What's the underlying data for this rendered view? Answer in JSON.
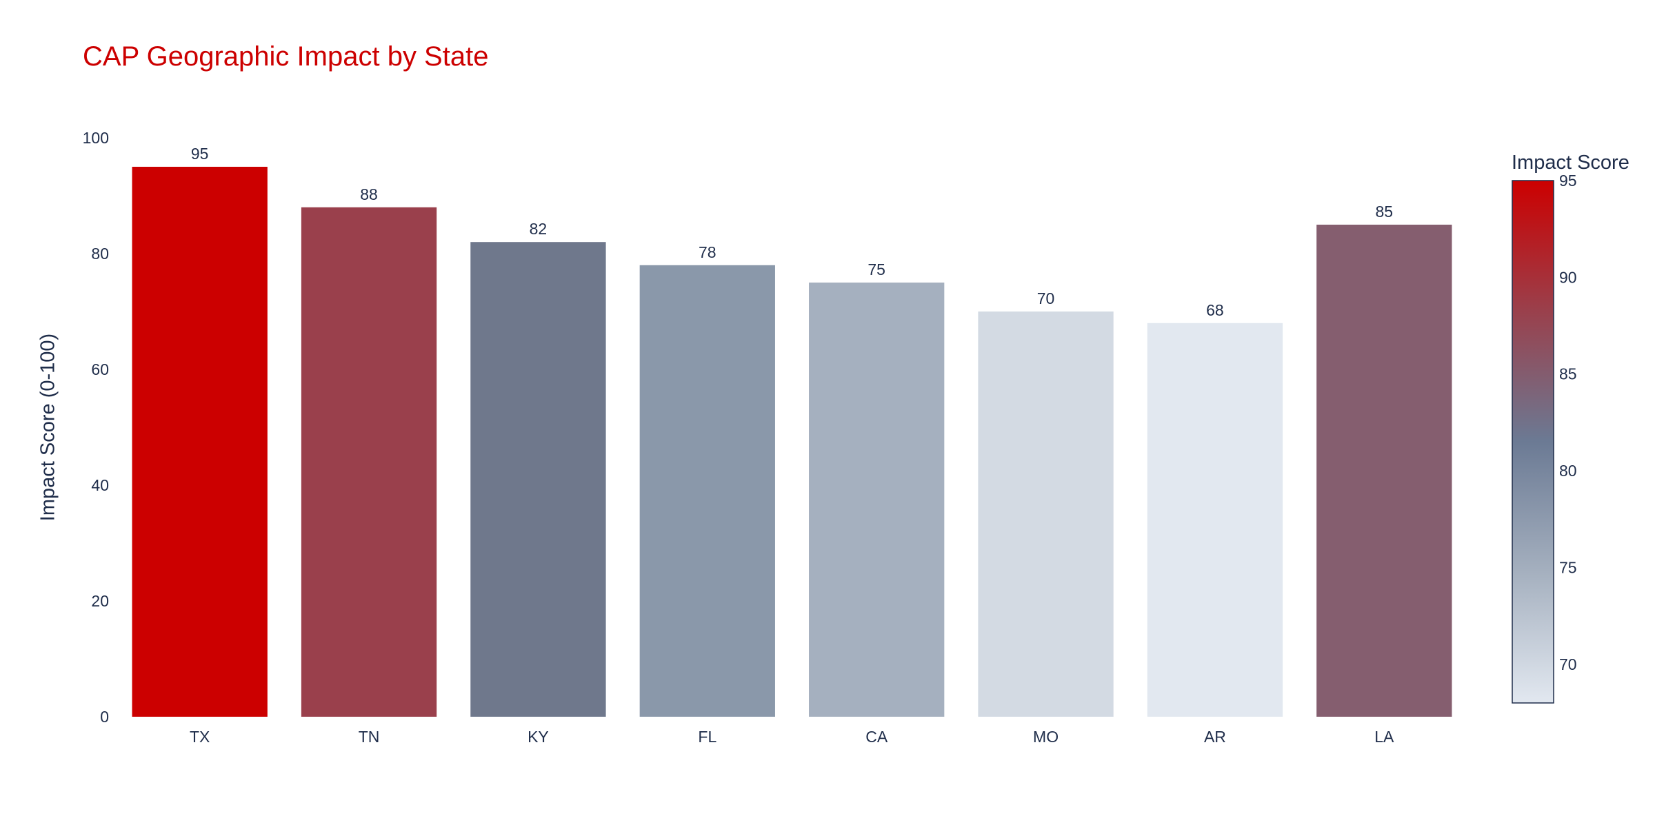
{
  "chart_data": {
    "type": "bar",
    "title": "CAP Geographic Impact by State",
    "xlabel": "",
    "ylabel": "Impact Score (0-100)",
    "categories": [
      "TX",
      "TN",
      "KY",
      "FL",
      "CA",
      "MO",
      "AR",
      "LA"
    ],
    "values": [
      95,
      88,
      82,
      78,
      75,
      70,
      68,
      85
    ],
    "ylim": [
      0,
      100
    ],
    "yticks": [
      0,
      20,
      40,
      60,
      80,
      100
    ],
    "grid": false,
    "colorbar": {
      "title": "Impact Score",
      "range": [
        68,
        95
      ],
      "ticks": [
        70,
        75,
        80,
        85,
        90,
        95
      ],
      "colorscale": [
        [
          0.0,
          "#e2e8f0"
        ],
        [
          0.25,
          "#a5b0bf"
        ],
        [
          0.5,
          "#6b7a94"
        ],
        [
          0.75,
          "#9a404c"
        ],
        [
          1.0,
          "#cc0000"
        ]
      ]
    },
    "bar_colors": [
      "#cc0000",
      "#9a404c",
      "#6f788c",
      "#8a98aa",
      "#a5b0bf",
      "#d3dae3",
      "#e2e8f0",
      "#855e6f"
    ]
  },
  "colors": {
    "title": "#cc0000",
    "text": "#1f2d4a"
  }
}
